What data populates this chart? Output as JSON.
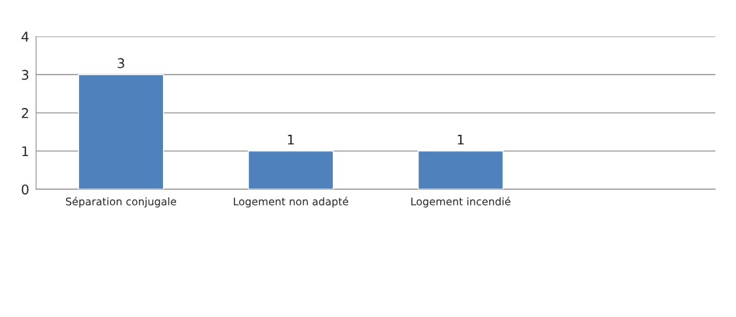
{
  "chart_data": {
    "type": "bar",
    "categories": [
      "Séparation conjugale",
      "Logement non adapté",
      "Logement incendié",
      null
    ],
    "values": [
      3,
      1,
      1,
      null
    ],
    "color": "#4f81bd",
    "ylim": [
      0,
      4
    ],
    "yticks": [
      0,
      1,
      2,
      3,
      4
    ],
    "grid": "y",
    "data_labels": true,
    "legend": false
  }
}
